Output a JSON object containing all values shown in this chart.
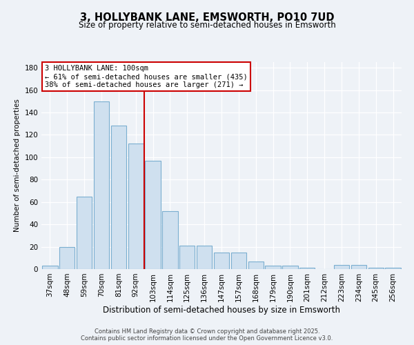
{
  "title1": "3, HOLLYBANK LANE, EMSWORTH, PO10 7UD",
  "title2": "Size of property relative to semi-detached houses in Emsworth",
  "xlabel": "Distribution of semi-detached houses by size in Emsworth",
  "ylabel": "Number of semi-detached properties",
  "categories": [
    "37sqm",
    "48sqm",
    "59sqm",
    "70sqm",
    "81sqm",
    "92sqm",
    "103sqm",
    "114sqm",
    "125sqm",
    "136sqm",
    "147sqm",
    "157sqm",
    "168sqm",
    "179sqm",
    "190sqm",
    "201sqm",
    "212sqm",
    "223sqm",
    "234sqm",
    "245sqm",
    "256sqm"
  ],
  "values": [
    3,
    20,
    65,
    150,
    128,
    112,
    97,
    52,
    21,
    21,
    15,
    15,
    7,
    3,
    3,
    1,
    0,
    4,
    4,
    1,
    1
  ],
  "bar_color": "#cfe0ef",
  "bar_edge_color": "#7aaed0",
  "vline_color": "#cc0000",
  "vline_position": 6,
  "annotation_line1": "3 HOLLYBANK LANE: 100sqm",
  "annotation_line2": "← 61% of semi-detached houses are smaller (435)",
  "annotation_line3": "38% of semi-detached houses are larger (271) →",
  "annotation_box_color": "#ffffff",
  "annotation_box_edge": "#cc0000",
  "footer_text": "Contains HM Land Registry data © Crown copyright and database right 2025.\nContains public sector information licensed under the Open Government Licence v3.0.",
  "bg_color": "#eef2f7",
  "ylim": [
    0,
    185
  ],
  "yticks": [
    0,
    20,
    40,
    60,
    80,
    100,
    120,
    140,
    160,
    180
  ],
  "title1_fontsize": 10.5,
  "title2_fontsize": 8.5,
  "xlabel_fontsize": 8.5,
  "ylabel_fontsize": 7.5,
  "tick_fontsize": 7.5,
  "annot_fontsize": 7.5,
  "footer_fontsize": 6.0
}
